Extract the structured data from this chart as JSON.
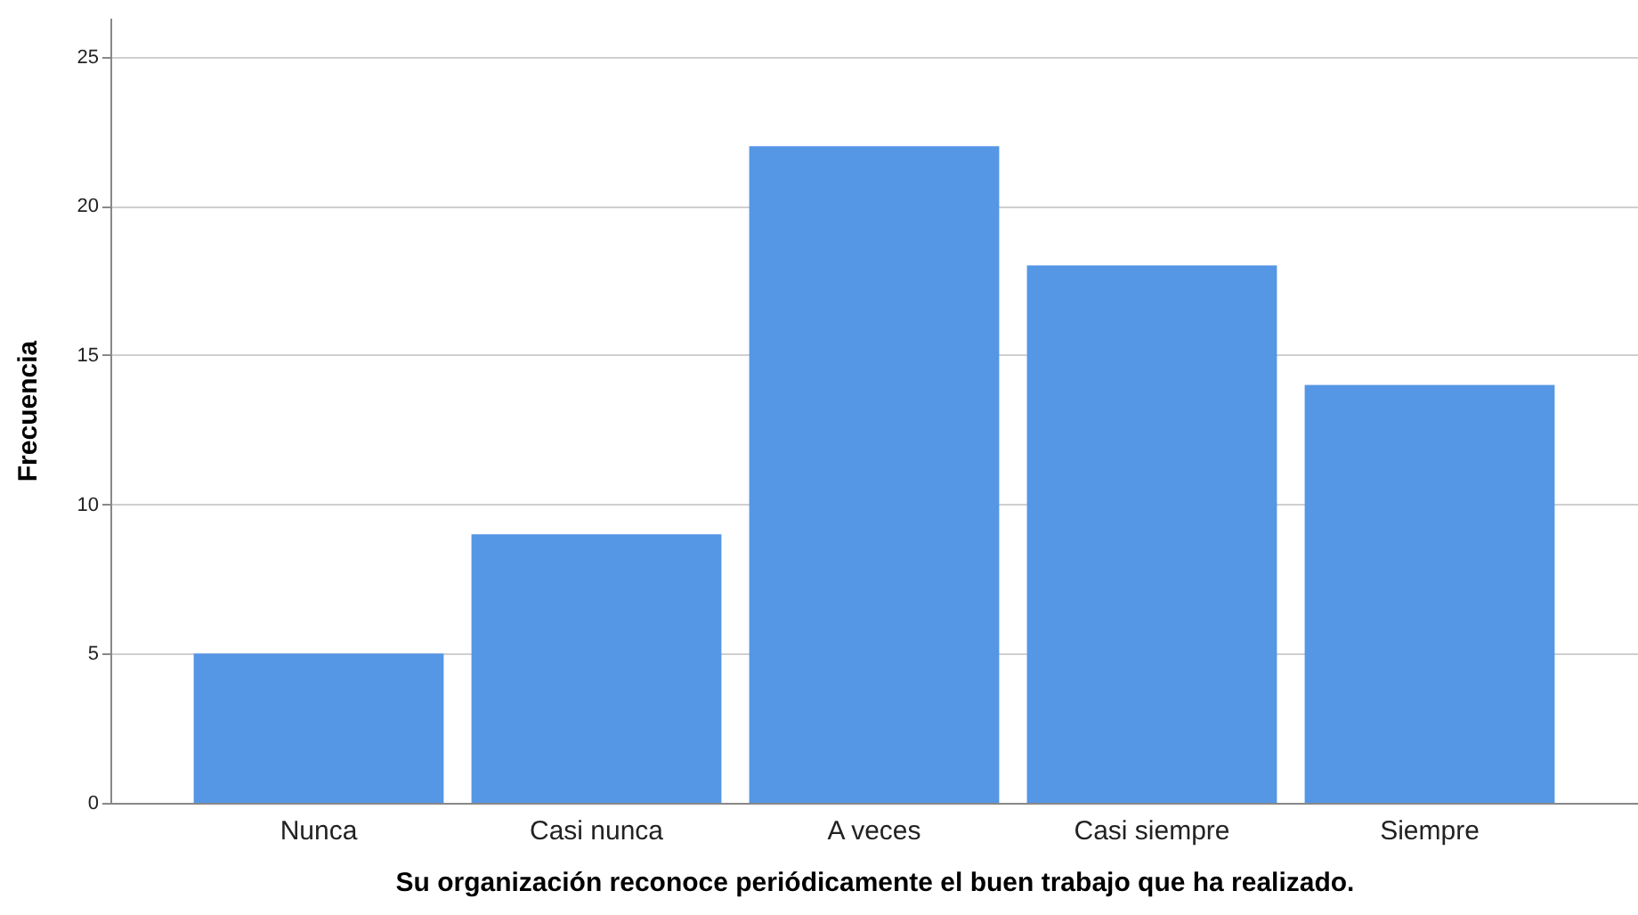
{
  "chart_data": {
    "type": "bar",
    "xlabel": "Su organización reconoce periódicamente el buen trabajo que ha realizado.",
    "ylabel": "Frecuencia",
    "categories": [
      "Nunca",
      "Casi nunca",
      "A veces",
      "Casi siempre",
      "Siempre"
    ],
    "values": [
      5,
      9,
      22,
      18,
      14
    ],
    "color": "#5596e5",
    "ylim": [
      0,
      26.3
    ],
    "yticks": [
      0,
      5,
      10,
      15,
      20,
      25
    ],
    "grid": "y"
  }
}
